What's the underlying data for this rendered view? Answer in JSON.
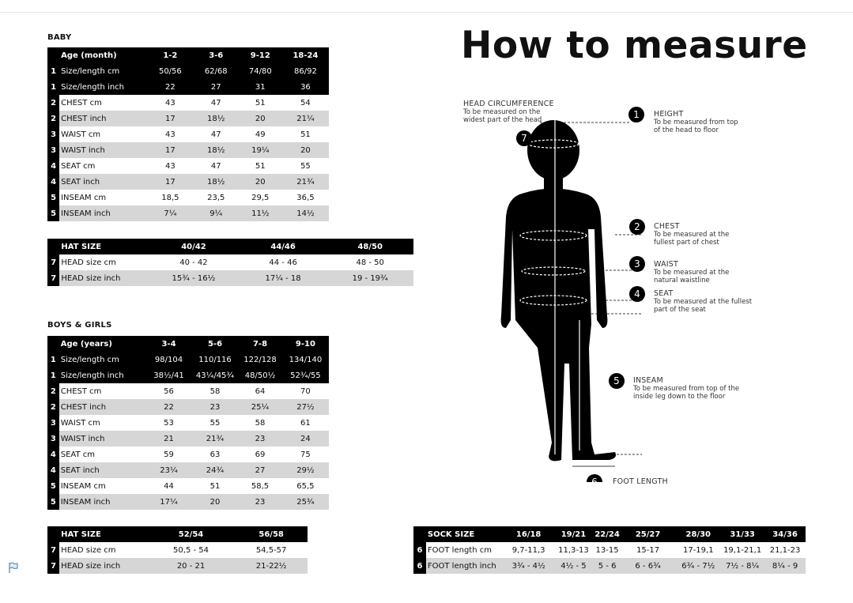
{
  "title": "How to measure",
  "baby": {
    "title": "BABY",
    "rows": [
      {
        "num": "",
        "label": "Age (month)",
        "values": [
          "1-2",
          "3-6",
          "9-12",
          "18-24"
        ],
        "style": "dark hdr"
      },
      {
        "num": "1",
        "label": "Size/length cm",
        "values": [
          "50/56",
          "62/68",
          "74/80",
          "86/92"
        ],
        "style": "dark"
      },
      {
        "num": "1",
        "label": "Size/length inch",
        "values": [
          "22",
          "27",
          "31",
          "36"
        ],
        "style": "dark"
      },
      {
        "num": "2",
        "label": "CHEST cm",
        "values": [
          "43",
          "47",
          "51",
          "54"
        ],
        "style": ""
      },
      {
        "num": "2",
        "label": "CHEST inch",
        "values": [
          "17",
          "18½",
          "20",
          "21¼"
        ],
        "style": "alt"
      },
      {
        "num": "3",
        "label": "WAIST cm",
        "values": [
          "43",
          "47",
          "49",
          "51"
        ],
        "style": ""
      },
      {
        "num": "3",
        "label": "WAIST inch",
        "values": [
          "17",
          "18½",
          "19¼",
          "20"
        ],
        "style": "alt"
      },
      {
        "num": "4",
        "label": "SEAT cm",
        "values": [
          "43",
          "47",
          "51",
          "55"
        ],
        "style": ""
      },
      {
        "num": "4",
        "label": "SEAT inch",
        "values": [
          "17",
          "18½",
          "20",
          "21¾"
        ],
        "style": "alt"
      },
      {
        "num": "5",
        "label": "INSEAM cm",
        "values": [
          "18,5",
          "23,5",
          "29,5",
          "36,5"
        ],
        "style": ""
      },
      {
        "num": "5",
        "label": "INSEAM inch",
        "values": [
          "7¼",
          "9¼",
          "11½",
          "14½"
        ],
        "style": "alt"
      }
    ]
  },
  "baby_hat": {
    "rows": [
      {
        "num": "",
        "label": "HAT SIZE",
        "values": [
          "40/42",
          "44/46",
          "48/50"
        ],
        "style": "dark hdr"
      },
      {
        "num": "7",
        "label": "HEAD size cm",
        "values": [
          "40 - 42",
          "44 - 46",
          "48 - 50"
        ],
        "style": ""
      },
      {
        "num": "7",
        "label": "HEAD size inch",
        "values": [
          "15¾ - 16½",
          "17¼ - 18",
          "19 - 19¾"
        ],
        "style": "alt"
      }
    ]
  },
  "kids": {
    "title": "BOYS & GIRLS",
    "rows": [
      {
        "num": "",
        "label": "Age (years)",
        "values": [
          "3-4",
          "5-6",
          "7-8",
          "9-10"
        ],
        "style": "dark hdr"
      },
      {
        "num": "1",
        "label": "Size/length cm",
        "values": [
          "98/104",
          "110/116",
          "122/128",
          "134/140"
        ],
        "style": "dark"
      },
      {
        "num": "1",
        "label": "Size/length inch",
        "values": [
          "38½/41",
          "43¼/45¾",
          "48/50½",
          "52¾/55"
        ],
        "style": "dark"
      },
      {
        "num": "2",
        "label": "CHEST cm",
        "values": [
          "56",
          "58",
          "64",
          "70"
        ],
        "style": ""
      },
      {
        "num": "2",
        "label": "CHEST inch",
        "values": [
          "22",
          "23",
          "25¼",
          "27½"
        ],
        "style": "alt"
      },
      {
        "num": "3",
        "label": "WAIST cm",
        "values": [
          "53",
          "55",
          "58",
          "61"
        ],
        "style": ""
      },
      {
        "num": "3",
        "label": "WAIST inch",
        "values": [
          "21",
          "21¾",
          "23",
          "24"
        ],
        "style": "alt"
      },
      {
        "num": "4",
        "label": "SEAT cm",
        "values": [
          "59",
          "63",
          "69",
          "75"
        ],
        "style": ""
      },
      {
        "num": "4",
        "label": "SEAT inch",
        "values": [
          "23¼",
          "24¾",
          "27",
          "29½"
        ],
        "style": "alt"
      },
      {
        "num": "5",
        "label": "INSEAM cm",
        "values": [
          "44",
          "51",
          "58,5",
          "65,5"
        ],
        "style": ""
      },
      {
        "num": "5",
        "label": "INSEAM inch",
        "values": [
          "17¼",
          "20",
          "23",
          "25¾"
        ],
        "style": "alt"
      }
    ]
  },
  "kids_hat": {
    "rows": [
      {
        "num": "",
        "label": "HAT SIZE",
        "values": [
          "52/54",
          "56/58"
        ],
        "style": "dark hdr"
      },
      {
        "num": "7",
        "label": "HEAD size cm",
        "values": [
          "50,5 - 54",
          "54,5-57"
        ],
        "style": ""
      },
      {
        "num": "7",
        "label": "HEAD size inch",
        "values": [
          "20 - 21",
          "21-22½"
        ],
        "style": "alt"
      }
    ]
  },
  "sock": {
    "rows": [
      {
        "num": "",
        "label": "SOCK SIZE",
        "values": [
          "16/18",
          "19/21",
          "22/24",
          "25/27",
          "28/30",
          "31/33",
          "34/36"
        ],
        "style": "dark hdr"
      },
      {
        "num": "6",
        "label": "FOOT length cm",
        "values": [
          "9,7-11,3",
          "11,3-13",
          "13-15",
          "15-17",
          "17-19,1",
          "19,1-21,1",
          "21,1-23"
        ],
        "style": ""
      },
      {
        "num": "6",
        "label": "FOOT length inch",
        "values": [
          "3¾ - 4½",
          "4½ - 5",
          "5 - 6",
          "6 - 6¾",
          "6¾ - 7½",
          "7½ - 8¼",
          "8¼ - 9"
        ],
        "style": "alt"
      }
    ]
  },
  "diagram": {
    "head": {
      "title": "HEAD CIRCUMFERENCE",
      "desc1": "To be measured on the",
      "desc2": "widest part of the head",
      "num": "7"
    },
    "height": {
      "title": "HEIGHT",
      "desc1": "To be measured from top",
      "desc2": "of the head to floor",
      "num": "1"
    },
    "chest": {
      "title": "CHEST",
      "desc1": "To be measured at the",
      "desc2": "fullest part of chest",
      "num": "2"
    },
    "waist": {
      "title": "WAIST",
      "desc1": "To be measured at the",
      "desc2": "natural waistline",
      "num": "3"
    },
    "seat": {
      "title": "SEAT",
      "desc1": "To be measured at the fullest",
      "desc2": "part of the seat",
      "num": "4"
    },
    "inseam": {
      "title": "INSEAM",
      "desc1": "To be measured from top of the",
      "desc2": "inside leg down to the floor",
      "num": "5"
    },
    "foot": {
      "title": "FOOT LENGTH",
      "num": "6"
    }
  },
  "icons": {
    "flag": "flag-icon"
  },
  "colors": {
    "header": "#000000",
    "alt_row": "#d6d6d6",
    "flag": "#4a7fb5"
  }
}
